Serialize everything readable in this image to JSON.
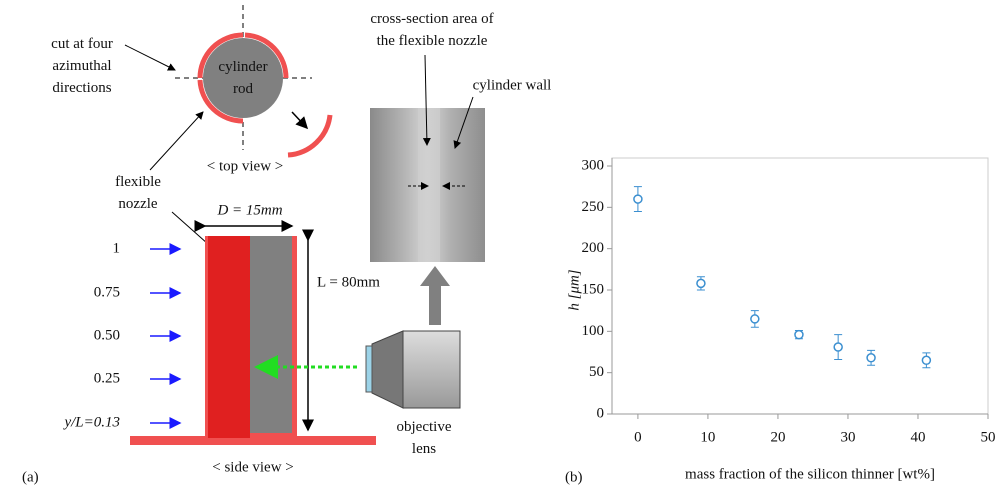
{
  "diagram": {
    "panel_a": "(a)",
    "panel_b": "(b)",
    "cut_note": [
      "cut at four",
      "azimuthal",
      "directions"
    ],
    "rod_label": [
      "cylinder",
      "rod"
    ],
    "top_view": "< top view >",
    "nozzle_label": [
      "flexible",
      "nozzle"
    ],
    "diameter": "D = 15mm",
    "length": "L = 80mm",
    "heights": [
      "1",
      "0.75",
      "0.50",
      "0.25",
      "y/L=0.13"
    ],
    "side_view": "< side view >",
    "lens_label": [
      "objective",
      "lens"
    ],
    "cross_section": [
      "cross-section area of",
      "the flexible nozzle"
    ],
    "wall_label": "cylinder wall"
  },
  "chart_data": {
    "type": "scatter",
    "x_label": "mass fraction of the silicon thinner [wt%]",
    "y_label": "h [μm]",
    "x": [
      0,
      9,
      16.7,
      23,
      28.6,
      33.3,
      41.2
    ],
    "series": [
      {
        "color": "#3b8fd0",
        "values": [
          260,
          158,
          115,
          96,
          81,
          68,
          65
        ],
        "errors": [
          15,
          8,
          10,
          5,
          15,
          9,
          9
        ]
      }
    ],
    "xlim": [
      -3.7,
      50
    ],
    "xticks": [
      0,
      10,
      20,
      30,
      40,
      50
    ],
    "ylim": [
      0,
      300
    ],
    "yticks": [
      0,
      50,
      100,
      150,
      200,
      250,
      300
    ]
  }
}
